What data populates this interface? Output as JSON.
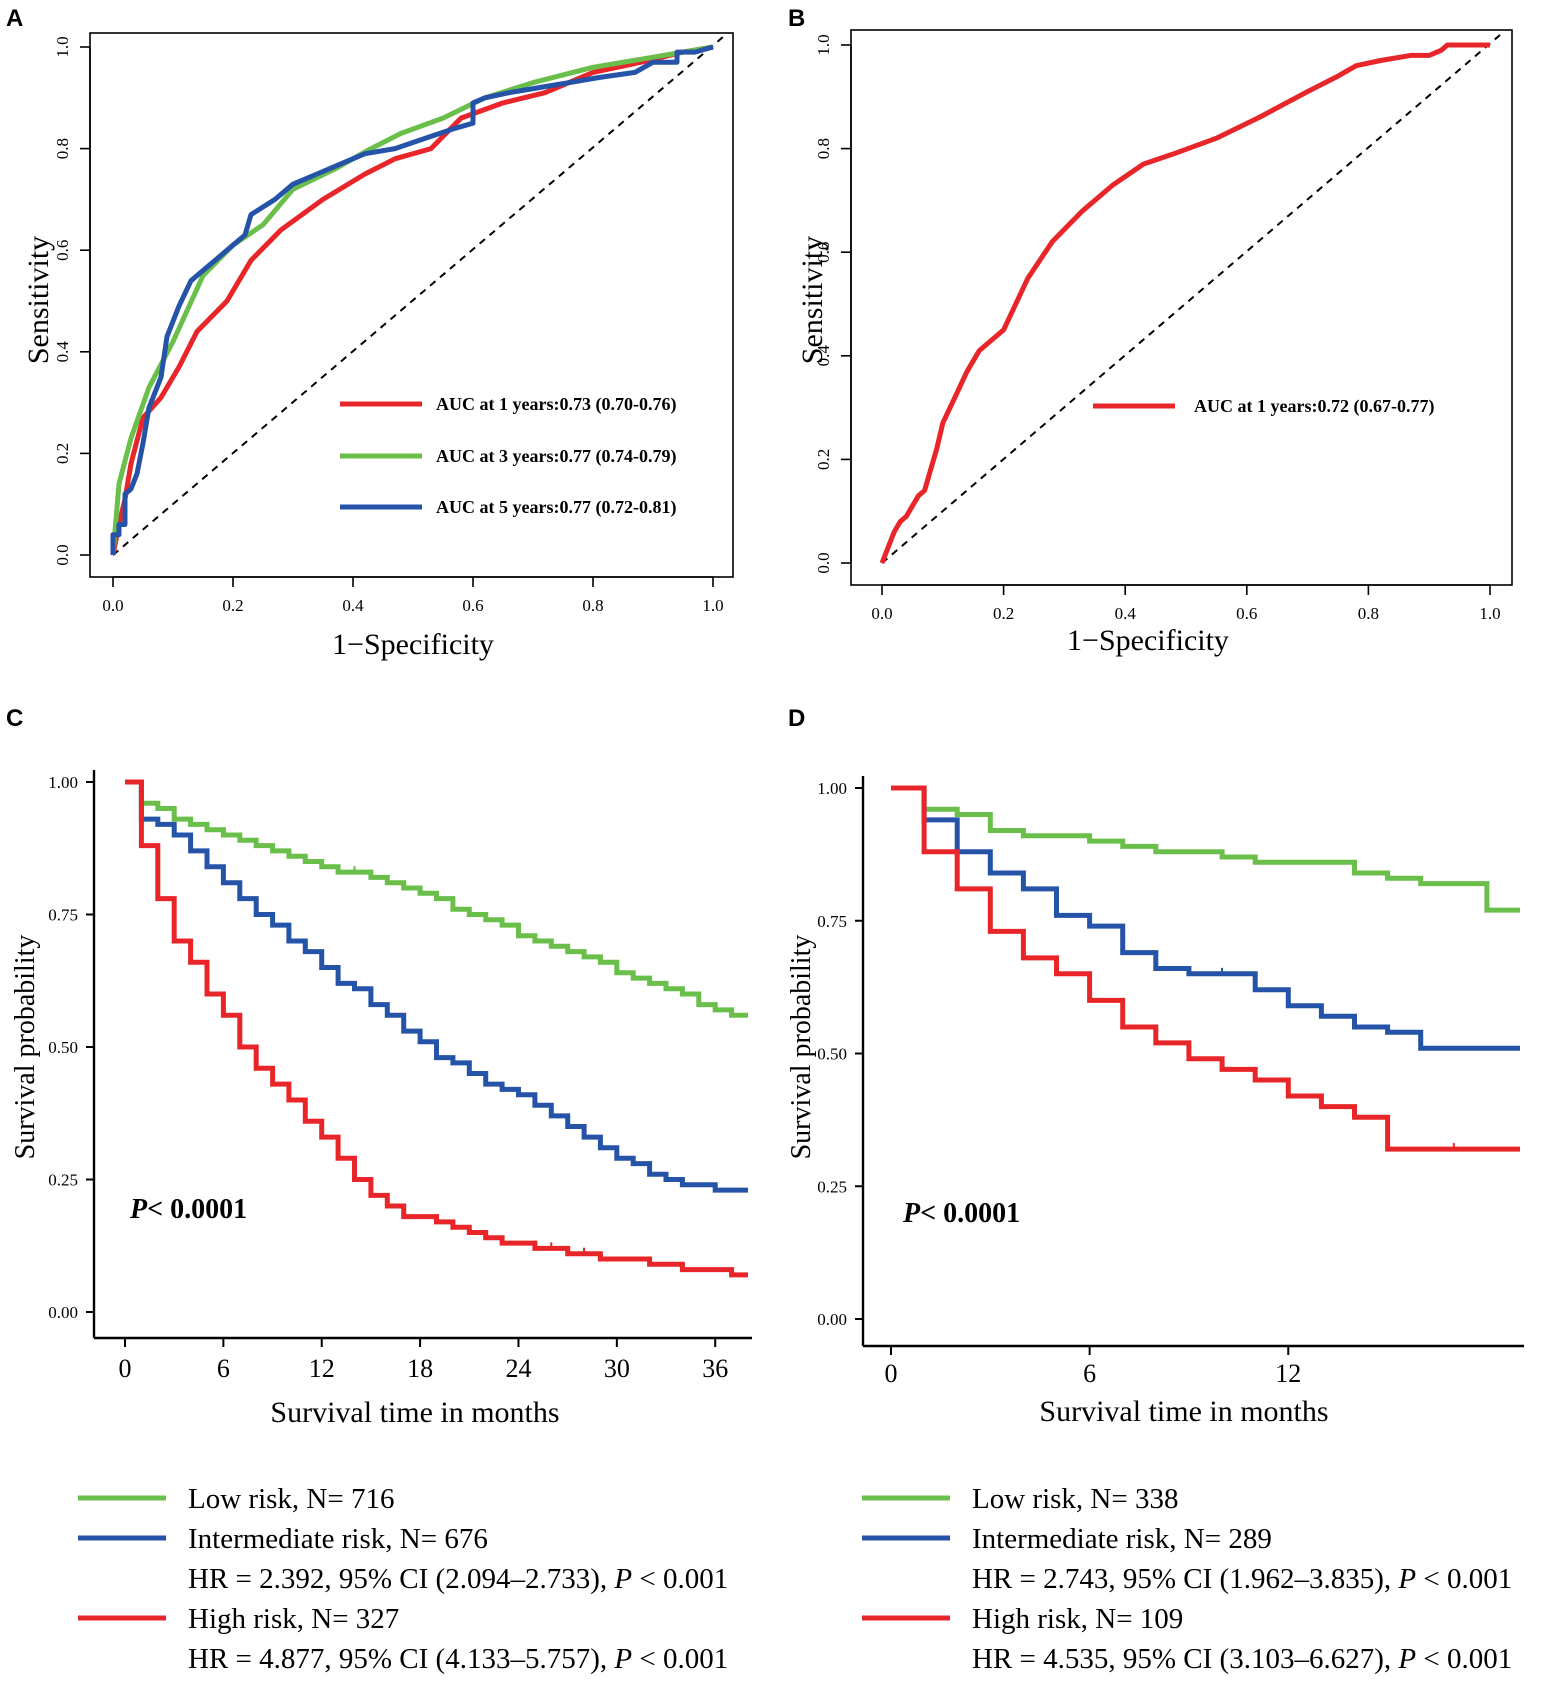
{
  "colors": {
    "red": "#e8262a",
    "green": "#6abf4b",
    "blue": "#2553a8",
    "black": "#000000"
  },
  "chart_data": [
    {
      "panel": "A",
      "type": "line",
      "subtype": "roc",
      "xlabel": "1−Specificity",
      "ylabel": "Sensitivity",
      "xlim": [
        0,
        1
      ],
      "ylim": [
        0,
        1
      ],
      "xticks": [
        0,
        0.2,
        0.4,
        0.6,
        0.8,
        1
      ],
      "xtick_labels": [
        "0.0",
        "0.2",
        "0.4",
        "0.6",
        "0.8",
        "1.0"
      ],
      "yticks": [
        0,
        0.2,
        0.4,
        0.6,
        0.8,
        1
      ],
      "ytick_labels": [
        "0.0",
        "0.2",
        "0.4",
        "0.6",
        "0.8",
        "1.0"
      ],
      "legend_position": "bottom-right",
      "series": [
        {
          "name": "AUC at 1 years:0.73 (0.70-0.76)",
          "color": "red",
          "x": [
            0,
            0.01,
            0.02,
            0.03,
            0.05,
            0.08,
            0.11,
            0.14,
            0.19,
            0.23,
            0.28,
            0.35,
            0.42,
            0.47,
            0.53,
            0.58,
            0.65,
            0.72,
            0.8,
            0.88,
            0.95,
            1.0
          ],
          "y": [
            0,
            0.06,
            0.11,
            0.18,
            0.27,
            0.31,
            0.37,
            0.44,
            0.5,
            0.58,
            0.64,
            0.7,
            0.75,
            0.78,
            0.8,
            0.86,
            0.89,
            0.91,
            0.95,
            0.97,
            0.99,
            1.0
          ]
        },
        {
          "name": "AUC at 3 years:0.77 (0.74-0.79)",
          "color": "green",
          "x": [
            0,
            0.01,
            0.03,
            0.06,
            0.1,
            0.15,
            0.2,
            0.25,
            0.3,
            0.37,
            0.43,
            0.48,
            0.55,
            0.62,
            0.7,
            0.8,
            0.9,
            1.0
          ],
          "y": [
            0,
            0.14,
            0.23,
            0.33,
            0.42,
            0.55,
            0.61,
            0.65,
            0.72,
            0.76,
            0.8,
            0.83,
            0.86,
            0.9,
            0.93,
            0.96,
            0.98,
            1.0
          ]
        },
        {
          "name": "AUC at 5 years:0.77 (0.72-0.81)",
          "color": "blue",
          "x": [
            0,
            0,
            0.01,
            0.01,
            0.02,
            0.02,
            0.03,
            0.04,
            0.05,
            0.06,
            0.08,
            0.09,
            0.11,
            0.13,
            0.15,
            0.17,
            0.19,
            0.21,
            0.22,
            0.23,
            0.27,
            0.3,
            0.34,
            0.38,
            0.42,
            0.47,
            0.52,
            0.57,
            0.6,
            0.6,
            0.62,
            0.66,
            0.71,
            0.76,
            0.81,
            0.87,
            0.9,
            0.94,
            0.94,
            0.97,
            1.0
          ],
          "y": [
            0,
            0.04,
            0.04,
            0.06,
            0.06,
            0.12,
            0.13,
            0.16,
            0.22,
            0.29,
            0.35,
            0.43,
            0.49,
            0.54,
            0.56,
            0.58,
            0.6,
            0.62,
            0.63,
            0.67,
            0.7,
            0.73,
            0.75,
            0.77,
            0.79,
            0.8,
            0.82,
            0.84,
            0.85,
            0.89,
            0.9,
            0.91,
            0.92,
            0.93,
            0.94,
            0.95,
            0.97,
            0.97,
            0.99,
            0.99,
            1.0
          ]
        }
      ]
    },
    {
      "panel": "B",
      "type": "line",
      "subtype": "roc",
      "xlabel": "1−Specificity",
      "ylabel": "Sensitivity",
      "xlim": [
        0,
        1
      ],
      "ylim": [
        0,
        1
      ],
      "xticks": [
        0,
        0.2,
        0.4,
        0.6,
        0.8,
        1
      ],
      "xtick_labels": [
        "0.0",
        "0.2",
        "0.4",
        "0.6",
        "0.8",
        "1.0"
      ],
      "yticks": [
        0,
        0.2,
        0.4,
        0.6,
        0.8,
        1
      ],
      "ytick_labels": [
        "0.0",
        "0.2",
        "0.4",
        "0.6",
        "0.8",
        "1.0"
      ],
      "legend_position": "center-right",
      "series": [
        {
          "name": "AUC at 1 years:0.72 (0.67-0.77)",
          "color": "red",
          "x": [
            0,
            0.01,
            0.02,
            0.03,
            0.04,
            0.05,
            0.06,
            0.07,
            0.08,
            0.09,
            0.1,
            0.12,
            0.14,
            0.16,
            0.2,
            0.24,
            0.28,
            0.33,
            0.38,
            0.43,
            0.48,
            0.55,
            0.62,
            0.7,
            0.75,
            0.78,
            0.82,
            0.87,
            0.9,
            0.92,
            0.93,
            0.97,
            1.0
          ],
          "y": [
            0,
            0.03,
            0.06,
            0.08,
            0.09,
            0.11,
            0.13,
            0.14,
            0.18,
            0.22,
            0.27,
            0.32,
            0.37,
            0.41,
            0.45,
            0.55,
            0.62,
            0.68,
            0.73,
            0.77,
            0.79,
            0.82,
            0.86,
            0.91,
            0.94,
            0.96,
            0.97,
            0.98,
            0.98,
            0.99,
            1.0,
            1.0,
            1.0
          ]
        }
      ]
    },
    {
      "panel": "C",
      "type": "line",
      "subtype": "kaplan-meier",
      "xlabel": "Survival time in months",
      "ylabel": "Survival probability",
      "xlim": [
        0,
        38
      ],
      "ylim": [
        0,
        1
      ],
      "xticks": [
        0,
        6,
        12,
        18,
        24,
        30,
        36
      ],
      "xtick_labels": [
        "0",
        "6",
        "12",
        "18",
        "24",
        "30",
        "36"
      ],
      "yticks": [
        0,
        0.25,
        0.5,
        0.75,
        1
      ],
      "ytick_labels": [
        "0.00",
        "0.25",
        "0.50",
        "0.75",
        "1.00"
      ],
      "annotation_p": "P",
      "annotation_rest": "< 0.0001",
      "series": [
        {
          "name": "Low risk, N= 716",
          "color": "green",
          "x": [
            0,
            1,
            2,
            3,
            4,
            5,
            6,
            7,
            8,
            9,
            10,
            11,
            12,
            13,
            14,
            15,
            16,
            17,
            18,
            19,
            20,
            21,
            22,
            23,
            24,
            25,
            26,
            27,
            28,
            29,
            30,
            31,
            32,
            33,
            34,
            35,
            36,
            37,
            38
          ],
          "y": [
            1.0,
            0.96,
            0.95,
            0.93,
            0.92,
            0.91,
            0.9,
            0.89,
            0.88,
            0.87,
            0.86,
            0.85,
            0.84,
            0.83,
            0.83,
            0.82,
            0.81,
            0.8,
            0.79,
            0.78,
            0.76,
            0.75,
            0.74,
            0.73,
            0.71,
            0.7,
            0.69,
            0.68,
            0.67,
            0.66,
            0.64,
            0.63,
            0.62,
            0.61,
            0.6,
            0.58,
            0.57,
            0.56,
            0.56
          ],
          "censor_x": [
            14,
            28,
            31
          ]
        },
        {
          "name": "Intermediate risk, N= 676",
          "legend_line2": "HR = 2.392, 95% CI (2.094–2.733), ",
          "legend_p": "P",
          "legend_tail": " < 0.001",
          "color": "blue",
          "x": [
            0,
            1,
            2,
            3,
            4,
            5,
            6,
            7,
            8,
            9,
            10,
            11,
            12,
            13,
            14,
            15,
            16,
            17,
            18,
            19,
            20,
            21,
            22,
            23,
            24,
            25,
            26,
            27,
            28,
            29,
            30,
            31,
            32,
            33,
            34,
            35,
            36,
            37,
            38
          ],
          "y": [
            1.0,
            0.93,
            0.92,
            0.9,
            0.87,
            0.84,
            0.81,
            0.78,
            0.75,
            0.73,
            0.7,
            0.68,
            0.65,
            0.62,
            0.61,
            0.58,
            0.56,
            0.53,
            0.51,
            0.48,
            0.47,
            0.45,
            0.43,
            0.42,
            0.41,
            0.39,
            0.37,
            0.35,
            0.33,
            0.31,
            0.29,
            0.28,
            0.26,
            0.25,
            0.24,
            0.24,
            0.23,
            0.23,
            0.23
          ],
          "censor_x": [
            23,
            34
          ]
        },
        {
          "name": "High risk, N= 327",
          "legend_line2": "HR = 4.877, 95% CI (4.133–5.757), ",
          "legend_p": "P",
          "legend_tail": " < 0.001",
          "color": "red",
          "x": [
            0,
            1,
            2,
            3,
            4,
            5,
            6,
            7,
            8,
            9,
            10,
            11,
            12,
            13,
            14,
            15,
            16,
            17,
            18,
            19,
            20,
            21,
            22,
            23,
            24,
            25,
            26,
            27,
            28,
            29,
            30,
            31,
            32,
            33,
            34,
            35,
            36,
            37,
            38
          ],
          "y": [
            1.0,
            0.88,
            0.78,
            0.7,
            0.66,
            0.6,
            0.56,
            0.5,
            0.46,
            0.43,
            0.4,
            0.36,
            0.33,
            0.29,
            0.25,
            0.22,
            0.2,
            0.18,
            0.18,
            0.17,
            0.16,
            0.15,
            0.14,
            0.13,
            0.13,
            0.12,
            0.12,
            0.11,
            0.11,
            0.1,
            0.1,
            0.1,
            0.09,
            0.09,
            0.08,
            0.08,
            0.08,
            0.07,
            0.07
          ],
          "censor_x": [
            26,
            28,
            32
          ]
        }
      ]
    },
    {
      "panel": "D",
      "type": "line",
      "subtype": "kaplan-meier",
      "xlabel": "Survival time in months",
      "ylabel": "Survival probability",
      "xlim": [
        0,
        19
      ],
      "ylim": [
        0,
        1
      ],
      "xticks": [
        0,
        6,
        12
      ],
      "xtick_labels": [
        "0",
        "6",
        "12"
      ],
      "yticks": [
        0,
        0.25,
        0.5,
        0.75,
        1
      ],
      "ytick_labels": [
        "0.00",
        "0.25",
        "0.50",
        "0.75",
        "1.00"
      ],
      "annotation_p": "P",
      "annotation_rest": "< 0.0001",
      "series": [
        {
          "name": "Low risk, N= 338",
          "color": "green",
          "x": [
            0,
            1,
            2,
            3,
            4,
            5,
            6,
            7,
            8,
            9,
            10,
            11,
            12,
            13,
            14,
            15,
            16,
            17,
            18,
            19
          ],
          "y": [
            1.0,
            0.96,
            0.95,
            0.92,
            0.91,
            0.91,
            0.9,
            0.89,
            0.88,
            0.88,
            0.87,
            0.86,
            0.86,
            0.86,
            0.84,
            0.83,
            0.82,
            0.82,
            0.77,
            0.77
          ],
          "censor_x": [
            8,
            11,
            14
          ]
        },
        {
          "name": "Intermediate risk, N= 289",
          "legend_line2": "HR = 2.743, 95% CI (1.962–3.835), ",
          "legend_p": "P",
          "legend_tail": " < 0.001",
          "color": "blue",
          "x": [
            0,
            1,
            2,
            3,
            4,
            5,
            6,
            7,
            8,
            9,
            10,
            11,
            12,
            13,
            14,
            15,
            16,
            17,
            18,
            19
          ],
          "y": [
            1.0,
            0.94,
            0.88,
            0.84,
            0.81,
            0.76,
            0.74,
            0.69,
            0.66,
            0.65,
            0.65,
            0.62,
            0.59,
            0.57,
            0.55,
            0.54,
            0.51,
            0.51,
            0.51,
            0.51
          ],
          "censor_x": [
            10,
            16
          ]
        },
        {
          "name": "High risk, N= 109",
          "legend_line2": "HR = 4.535, 95% CI (3.103–6.627), ",
          "legend_p": "P",
          "legend_tail": " < 0.001",
          "color": "red",
          "x": [
            0,
            1,
            2,
            3,
            4,
            5,
            6,
            7,
            8,
            9,
            10,
            11,
            12,
            13,
            14,
            15,
            16,
            17,
            18,
            19
          ],
          "y": [
            1.0,
            0.88,
            0.81,
            0.73,
            0.68,
            0.65,
            0.6,
            0.55,
            0.52,
            0.49,
            0.47,
            0.45,
            0.42,
            0.4,
            0.38,
            0.32,
            0.32,
            0.32,
            0.32,
            0.32
          ],
          "censor_x": [
            17
          ]
        }
      ]
    }
  ]
}
